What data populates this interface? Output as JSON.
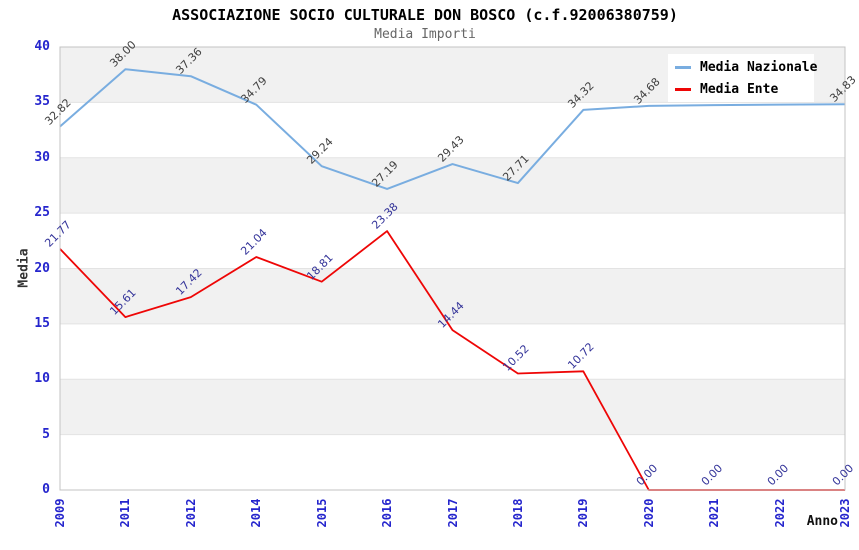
{
  "chart_data": {
    "type": "line",
    "title": "ASSOCIAZIONE SOCIO CULTURALE DON BOSCO (c.f.92006380759)",
    "subtitle": "Media Importi",
    "xlabel": "Anno",
    "ylabel": "Media",
    "ylim": [
      0,
      40
    ],
    "yticks": [
      0,
      5,
      10,
      15,
      20,
      25,
      30,
      35,
      40
    ],
    "categories": [
      "2009",
      "2011",
      "2012",
      "2014",
      "2015",
      "2016",
      "2017",
      "2018",
      "2019",
      "2020",
      "2021",
      "2022",
      "2023"
    ],
    "grid": "horizontal-gridlines-with-alternating-bands",
    "legend_position": "top-right",
    "series": [
      {
        "name": "Media Nazionale",
        "color": "#79ade0",
        "label_color": "#3f3f3f",
        "values": [
          32.82,
          38.0,
          37.36,
          34.79,
          29.24,
          27.19,
          29.43,
          27.71,
          34.32,
          34.68,
          34.75,
          34.8,
          34.83
        ],
        "labels": [
          "32.82",
          "38.00",
          "37.36",
          "34.79",
          "29.24",
          "27.19",
          "29.43",
          "27.71",
          "34.32",
          "34.68",
          "",
          "",
          "34.83"
        ]
      },
      {
        "name": "Media Ente",
        "color": "#ee0606",
        "label_color": "#333399",
        "values": [
          21.77,
          15.61,
          17.42,
          21.04,
          18.81,
          23.38,
          14.44,
          10.52,
          10.72,
          0.0,
          0.0,
          0.0,
          0.0
        ],
        "labels": [
          "21.77",
          "15.61",
          "17.42",
          "21.04",
          "18.81",
          "23.38",
          "14.44",
          "10.52",
          "10.72",
          "0.00",
          "0.00",
          "0.00",
          "0.00"
        ]
      }
    ],
    "style": {
      "tick_color": "#2525cd",
      "band_fill": "#f1f1f1",
      "gridline_color": "#e3e3e3",
      "plot_border_color": "#c3c3c3",
      "subtitle_color": "#666666"
    }
  }
}
